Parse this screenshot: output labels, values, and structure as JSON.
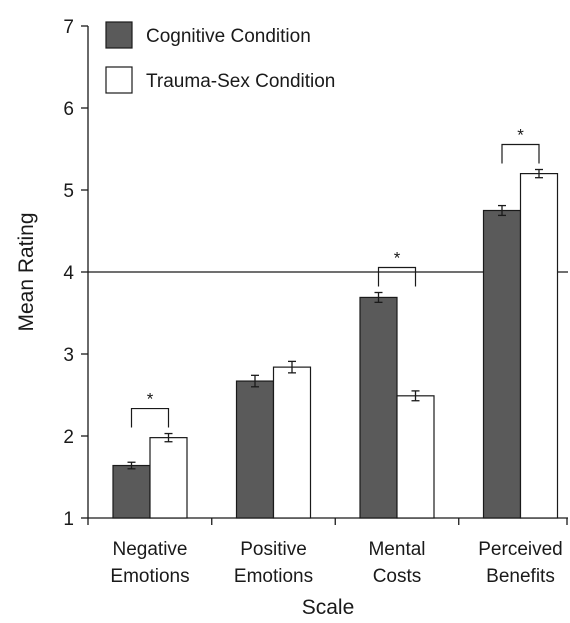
{
  "chart_data": {
    "type": "bar",
    "xlabel": "Scale",
    "ylabel": "Mean Rating",
    "ylim": [
      1,
      7
    ],
    "yticks": [
      1,
      2,
      3,
      4,
      5,
      6,
      7
    ],
    "reference_line": 4,
    "categories": [
      [
        "Negative",
        "Emotions"
      ],
      [
        "Positive",
        "Emotions"
      ],
      [
        "Mental",
        "Costs"
      ],
      [
        "Perceived",
        "Benefits"
      ]
    ],
    "series": [
      {
        "name": "Cognitive Condition",
        "color": "#5a5a5a",
        "values": [
          1.64,
          2.67,
          3.69,
          4.75
        ],
        "errors": [
          0.04,
          0.07,
          0.06,
          0.06
        ]
      },
      {
        "name": "Trauma-Sex Condition",
        "color": "#ffffff",
        "values": [
          1.98,
          2.84,
          2.49,
          5.2
        ],
        "errors": [
          0.05,
          0.07,
          0.06,
          0.05
        ]
      }
    ],
    "significance_marker": "*",
    "significant_categories": [
      0,
      2,
      3
    ],
    "legend_position": "top-left",
    "grid": false
  }
}
